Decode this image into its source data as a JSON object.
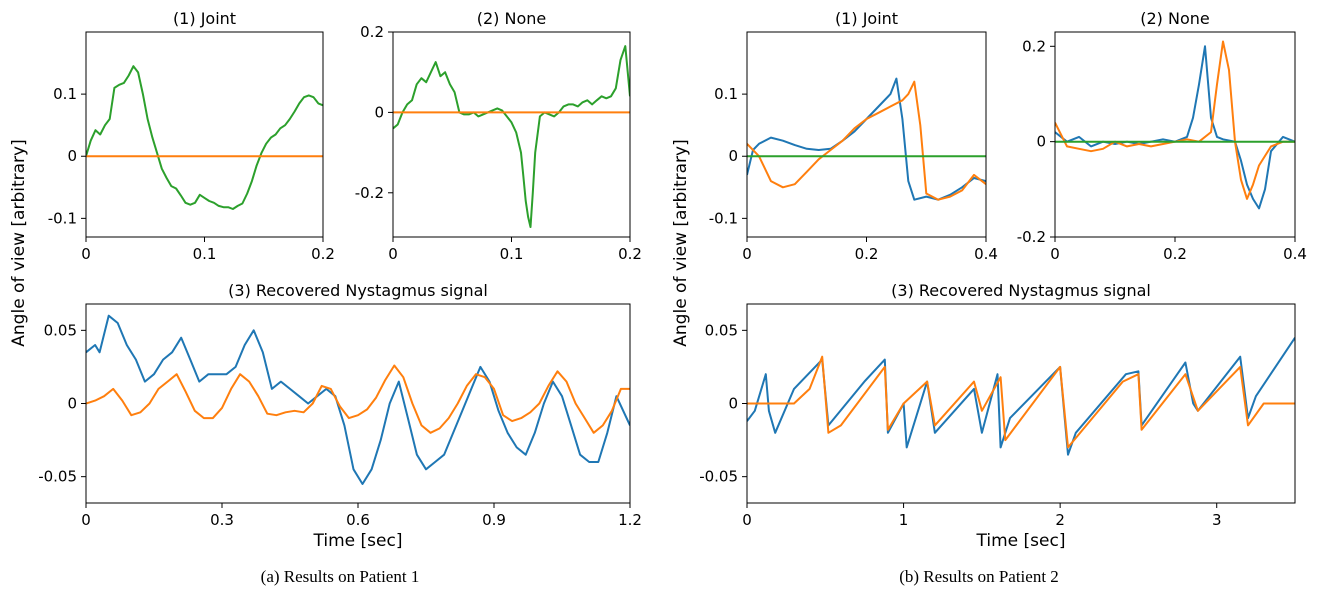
{
  "colors": {
    "blue": "#1f77b4",
    "orange": "#ff7f0e",
    "green": "#2ca02c"
  },
  "ylabel": "Angle of view [arbitrary]",
  "captions": {
    "a": "(a) Results on Patient 1",
    "b": "(b) Results on Patient 2"
  },
  "chart_data": [
    {
      "id": "p1_joint",
      "type": "line",
      "title": "(1) Joint",
      "xlim": [
        0,
        0.2
      ],
      "ylim": [
        -0.13,
        0.2
      ],
      "xticks": [
        0,
        0.1,
        0.2
      ],
      "xticklabels": [
        "0",
        "0.1",
        "0.2"
      ],
      "yticks": [
        -0.1,
        0,
        0.1
      ],
      "yticklabels": [
        "-0.1",
        "0",
        "0.1"
      ],
      "series": [
        {
          "color": "green",
          "x": [
            0,
            0.004,
            0.008,
            0.012,
            0.016,
            0.02,
            0.024,
            0.028,
            0.032,
            0.036,
            0.04,
            0.044,
            0.048,
            0.052,
            0.056,
            0.06,
            0.064,
            0.068,
            0.072,
            0.076,
            0.08,
            0.084,
            0.088,
            0.092,
            0.096,
            0.1,
            0.104,
            0.108,
            0.112,
            0.116,
            0.12,
            0.124,
            0.128,
            0.132,
            0.136,
            0.14,
            0.144,
            0.148,
            0.152,
            0.156,
            0.16,
            0.164,
            0.168,
            0.172,
            0.176,
            0.18,
            0.184,
            0.188,
            0.192,
            0.196,
            0.2
          ],
          "y": [
            0.0,
            0.025,
            0.042,
            0.035,
            0.05,
            0.06,
            0.11,
            0.115,
            0.118,
            0.13,
            0.145,
            0.135,
            0.1,
            0.06,
            0.03,
            0.005,
            -0.02,
            -0.035,
            -0.048,
            -0.052,
            -0.063,
            -0.075,
            -0.078,
            -0.075,
            -0.062,
            -0.067,
            -0.072,
            -0.075,
            -0.08,
            -0.082,
            -0.082,
            -0.085,
            -0.08,
            -0.076,
            -0.06,
            -0.04,
            -0.015,
            0.005,
            0.02,
            0.03,
            0.035,
            0.045,
            0.05,
            0.06,
            0.072,
            0.085,
            0.095,
            0.098,
            0.095,
            0.085,
            0.082
          ]
        },
        {
          "color": "orange",
          "x": [
            0,
            0.2
          ],
          "y": [
            0,
            0
          ]
        }
      ]
    },
    {
      "id": "p1_none",
      "type": "line",
      "title": "(2) None",
      "xlim": [
        0,
        0.2
      ],
      "ylim": [
        -0.31,
        0.2
      ],
      "xticks": [
        0,
        0.1,
        0.2
      ],
      "xticklabels": [
        "0",
        "0.1",
        "0.2"
      ],
      "yticks": [
        -0.2,
        0,
        0.2
      ],
      "yticklabels": [
        "-0.2",
        "0",
        "0.2"
      ],
      "series": [
        {
          "color": "green",
          "x": [
            0,
            0.004,
            0.008,
            0.012,
            0.016,
            0.02,
            0.024,
            0.028,
            0.032,
            0.036,
            0.04,
            0.044,
            0.048,
            0.052,
            0.056,
            0.06,
            0.064,
            0.068,
            0.072,
            0.076,
            0.08,
            0.084,
            0.088,
            0.092,
            0.096,
            0.1,
            0.104,
            0.108,
            0.11,
            0.112,
            0.114,
            0.116,
            0.118,
            0.12,
            0.124,
            0.128,
            0.132,
            0.136,
            0.14,
            0.144,
            0.148,
            0.152,
            0.156,
            0.16,
            0.164,
            0.168,
            0.172,
            0.176,
            0.18,
            0.184,
            0.188,
            0.192,
            0.196,
            0.2
          ],
          "y": [
            -0.04,
            -0.03,
            0.0,
            0.02,
            0.03,
            0.07,
            0.085,
            0.075,
            0.1,
            0.125,
            0.09,
            0.1,
            0.07,
            0.05,
            0.0,
            -0.005,
            -0.005,
            0.0,
            -0.01,
            -0.005,
            0.0,
            0.005,
            0.01,
            0.005,
            -0.01,
            -0.025,
            -0.05,
            -0.1,
            -0.16,
            -0.22,
            -0.26,
            -0.285,
            -0.2,
            -0.1,
            -0.01,
            0.0,
            -0.005,
            -0.01,
            0.0,
            0.015,
            0.02,
            0.02,
            0.015,
            0.025,
            0.03,
            0.02,
            0.03,
            0.04,
            0.035,
            0.04,
            0.06,
            0.13,
            0.165,
            0.04
          ]
        },
        {
          "color": "orange",
          "x": [
            0,
            0.2
          ],
          "y": [
            0,
            0
          ]
        }
      ]
    },
    {
      "id": "p2_joint",
      "type": "line",
      "title": "(1) Joint",
      "xlim": [
        0,
        0.4
      ],
      "ylim": [
        -0.13,
        0.2
      ],
      "xticks": [
        0,
        0.2,
        0.4
      ],
      "xticklabels": [
        "0",
        "0.2",
        "0.4"
      ],
      "yticks": [
        -0.1,
        0,
        0.1
      ],
      "yticklabels": [
        "-0.1",
        "0",
        "0.1"
      ],
      "series": [
        {
          "color": "blue",
          "x": [
            0,
            0.01,
            0.02,
            0.04,
            0.06,
            0.08,
            0.1,
            0.12,
            0.14,
            0.16,
            0.18,
            0.2,
            0.22,
            0.24,
            0.25,
            0.26,
            0.27,
            0.28,
            0.3,
            0.32,
            0.34,
            0.36,
            0.38,
            0.4
          ],
          "y": [
            -0.03,
            0.01,
            0.02,
            0.03,
            0.025,
            0.018,
            0.012,
            0.01,
            0.012,
            0.025,
            0.04,
            0.06,
            0.08,
            0.1,
            0.125,
            0.06,
            -0.04,
            -0.07,
            -0.065,
            -0.07,
            -0.062,
            -0.05,
            -0.035,
            -0.04
          ]
        },
        {
          "color": "orange",
          "x": [
            0,
            0.02,
            0.04,
            0.06,
            0.08,
            0.1,
            0.12,
            0.14,
            0.16,
            0.18,
            0.2,
            0.22,
            0.24,
            0.26,
            0.27,
            0.28,
            0.29,
            0.3,
            0.32,
            0.34,
            0.36,
            0.38,
            0.4
          ],
          "y": [
            0.02,
            0.0,
            -0.04,
            -0.05,
            -0.045,
            -0.025,
            -0.005,
            0.01,
            0.025,
            0.045,
            0.06,
            0.07,
            0.08,
            0.09,
            0.1,
            0.12,
            0.05,
            -0.06,
            -0.07,
            -0.065,
            -0.055,
            -0.03,
            -0.045
          ]
        },
        {
          "color": "green",
          "x": [
            0,
            0.4
          ],
          "y": [
            0,
            0
          ]
        }
      ]
    },
    {
      "id": "p2_none",
      "type": "line",
      "title": "(2) None",
      "xlim": [
        0,
        0.4
      ],
      "ylim": [
        -0.2,
        0.23
      ],
      "xticks": [
        0,
        0.2,
        0.4
      ],
      "xticklabels": [
        "0",
        "0.2",
        "0.4"
      ],
      "yticks": [
        -0.2,
        0,
        0.2
      ],
      "yticklabels": [
        "-0.2",
        "0",
        "0.2"
      ],
      "series": [
        {
          "color": "blue",
          "x": [
            0,
            0.02,
            0.04,
            0.06,
            0.08,
            0.1,
            0.12,
            0.14,
            0.16,
            0.18,
            0.2,
            0.22,
            0.23,
            0.24,
            0.25,
            0.26,
            0.27,
            0.28,
            0.3,
            0.31,
            0.32,
            0.33,
            0.34,
            0.35,
            0.36,
            0.38,
            0.4
          ],
          "y": [
            0.02,
            0.0,
            0.01,
            -0.01,
            0.0,
            -0.005,
            0.0,
            -0.005,
            0.0,
            0.005,
            0.0,
            0.01,
            0.05,
            0.12,
            0.2,
            0.05,
            0.01,
            0.005,
            0.0,
            -0.04,
            -0.09,
            -0.12,
            -0.14,
            -0.1,
            -0.02,
            0.01,
            0.0
          ]
        },
        {
          "color": "orange",
          "x": [
            0,
            0.02,
            0.04,
            0.06,
            0.08,
            0.1,
            0.12,
            0.14,
            0.16,
            0.18,
            0.2,
            0.22,
            0.24,
            0.26,
            0.27,
            0.28,
            0.29,
            0.3,
            0.31,
            0.32,
            0.33,
            0.34,
            0.36,
            0.38,
            0.4
          ],
          "y": [
            0.04,
            -0.01,
            -0.015,
            -0.02,
            -0.015,
            0.0,
            -0.01,
            -0.005,
            -0.01,
            -0.005,
            0.0,
            0.005,
            0.0,
            0.02,
            0.12,
            0.21,
            0.15,
            0.0,
            -0.08,
            -0.12,
            -0.09,
            -0.05,
            -0.01,
            0.0,
            0.0
          ]
        },
        {
          "color": "green",
          "x": [
            0,
            0.4
          ],
          "y": [
            0,
            0
          ]
        }
      ]
    },
    {
      "id": "p1_recovered",
      "type": "line",
      "title": "(3) Recovered Nystagmus signal",
      "xlabel": "Time [sec]",
      "xlim": [
        0,
        1.2
      ],
      "ylim": [
        -0.068,
        0.068
      ],
      "xticks": [
        0,
        0.3,
        0.6,
        0.9,
        1.2
      ],
      "xticklabels": [
        "0",
        "0.3",
        "0.6",
        "0.9",
        "1.2"
      ],
      "yticks": [
        -0.05,
        0,
        0.05
      ],
      "yticklabels": [
        "-0.05",
        "0",
        "0.05"
      ],
      "series": [
        {
          "color": "blue",
          "x": [
            0,
            0.02,
            0.03,
            0.05,
            0.07,
            0.09,
            0.11,
            0.13,
            0.15,
            0.17,
            0.19,
            0.21,
            0.23,
            0.25,
            0.27,
            0.29,
            0.31,
            0.33,
            0.35,
            0.37,
            0.39,
            0.41,
            0.43,
            0.45,
            0.47,
            0.49,
            0.51,
            0.53,
            0.55,
            0.57,
            0.59,
            0.61,
            0.63,
            0.65,
            0.67,
            0.69,
            0.71,
            0.73,
            0.75,
            0.77,
            0.79,
            0.81,
            0.83,
            0.85,
            0.87,
            0.89,
            0.91,
            0.93,
            0.95,
            0.97,
            0.99,
            1.01,
            1.03,
            1.05,
            1.07,
            1.09,
            1.11,
            1.13,
            1.15,
            1.17,
            1.2
          ],
          "y": [
            0.035,
            0.04,
            0.035,
            0.06,
            0.055,
            0.04,
            0.03,
            0.015,
            0.02,
            0.03,
            0.035,
            0.045,
            0.03,
            0.015,
            0.02,
            0.02,
            0.02,
            0.025,
            0.04,
            0.05,
            0.035,
            0.01,
            0.015,
            0.01,
            0.005,
            0.0,
            0.005,
            0.01,
            0.005,
            -0.015,
            -0.045,
            -0.055,
            -0.045,
            -0.025,
            0.0,
            0.015,
            -0.01,
            -0.035,
            -0.045,
            -0.04,
            -0.035,
            -0.02,
            -0.005,
            0.01,
            0.025,
            0.015,
            -0.005,
            -0.02,
            -0.03,
            -0.035,
            -0.02,
            0.0,
            0.015,
            0.005,
            -0.015,
            -0.035,
            -0.04,
            -0.04,
            -0.02,
            0.005,
            -0.015
          ]
        },
        {
          "color": "orange",
          "x": [
            0,
            0.02,
            0.04,
            0.06,
            0.08,
            0.1,
            0.12,
            0.14,
            0.16,
            0.18,
            0.2,
            0.22,
            0.24,
            0.26,
            0.28,
            0.3,
            0.32,
            0.34,
            0.36,
            0.38,
            0.4,
            0.42,
            0.44,
            0.46,
            0.48,
            0.5,
            0.52,
            0.54,
            0.56,
            0.58,
            0.6,
            0.62,
            0.64,
            0.66,
            0.68,
            0.7,
            0.72,
            0.74,
            0.76,
            0.78,
            0.8,
            0.82,
            0.84,
            0.86,
            0.88,
            0.9,
            0.92,
            0.94,
            0.96,
            0.98,
            1.0,
            1.02,
            1.04,
            1.06,
            1.08,
            1.1,
            1.12,
            1.14,
            1.16,
            1.18,
            1.2
          ],
          "y": [
            0.0,
            0.002,
            0.005,
            0.01,
            0.002,
            -0.008,
            -0.006,
            0.0,
            0.01,
            0.015,
            0.02,
            0.008,
            -0.005,
            -0.01,
            -0.01,
            -0.003,
            0.01,
            0.02,
            0.015,
            0.005,
            -0.007,
            -0.008,
            -0.006,
            -0.005,
            -0.006,
            0.0,
            0.012,
            0.01,
            -0.002,
            -0.01,
            -0.008,
            -0.004,
            0.004,
            0.016,
            0.026,
            0.018,
            0.0,
            -0.015,
            -0.02,
            -0.017,
            -0.01,
            0.0,
            0.012,
            0.02,
            0.018,
            0.01,
            -0.008,
            -0.012,
            -0.01,
            -0.006,
            0.0,
            0.012,
            0.022,
            0.015,
            0.0,
            -0.01,
            -0.02,
            -0.015,
            -0.005,
            0.01,
            0.01
          ]
        }
      ]
    },
    {
      "id": "p2_recovered",
      "type": "line",
      "title": "(3) Recovered Nystagmus signal",
      "xlabel": "Time [sec]",
      "xlim": [
        0,
        3.5
      ],
      "ylim": [
        -0.068,
        0.068
      ],
      "xticks": [
        0,
        1,
        2,
        3
      ],
      "xticklabels": [
        "0",
        "1",
        "2",
        "3"
      ],
      "yticks": [
        -0.05,
        0,
        0.05
      ],
      "yticklabels": [
        "-0.05",
        "0",
        "0.05"
      ],
      "series": [
        {
          "color": "blue",
          "x": [
            0,
            0.05,
            0.12,
            0.14,
            0.18,
            0.3,
            0.48,
            0.52,
            0.75,
            0.88,
            0.9,
            1.0,
            1.02,
            1.15,
            1.2,
            1.45,
            1.5,
            1.6,
            1.62,
            1.68,
            2.0,
            2.05,
            2.1,
            2.42,
            2.5,
            2.52,
            2.8,
            2.85,
            2.88,
            3.15,
            3.2,
            3.25,
            3.5
          ],
          "y": [
            -0.012,
            -0.005,
            0.02,
            -0.005,
            -0.02,
            0.01,
            0.03,
            -0.015,
            0.015,
            0.03,
            -0.02,
            0.0,
            -0.03,
            0.015,
            -0.02,
            0.01,
            -0.02,
            0.02,
            -0.03,
            -0.01,
            0.025,
            -0.035,
            -0.02,
            0.02,
            0.022,
            -0.015,
            0.028,
            0.0,
            -0.005,
            0.032,
            -0.01,
            0.005,
            0.045
          ]
        },
        {
          "color": "orange",
          "x": [
            0,
            0.3,
            0.4,
            0.48,
            0.52,
            0.6,
            0.88,
            0.9,
            1.0,
            1.15,
            1.2,
            1.45,
            1.5,
            1.62,
            1.65,
            2.0,
            2.05,
            2.4,
            2.5,
            2.52,
            2.8,
            2.88,
            3.15,
            3.2,
            3.3,
            3.5
          ],
          "y": [
            0.0,
            0.0,
            0.01,
            0.032,
            -0.02,
            -0.015,
            0.025,
            -0.018,
            0.0,
            0.015,
            -0.015,
            0.015,
            -0.005,
            0.018,
            -0.025,
            0.025,
            -0.03,
            0.015,
            0.02,
            -0.018,
            0.02,
            -0.005,
            0.025,
            -0.015,
            0.0,
            0.0
          ]
        }
      ]
    }
  ]
}
